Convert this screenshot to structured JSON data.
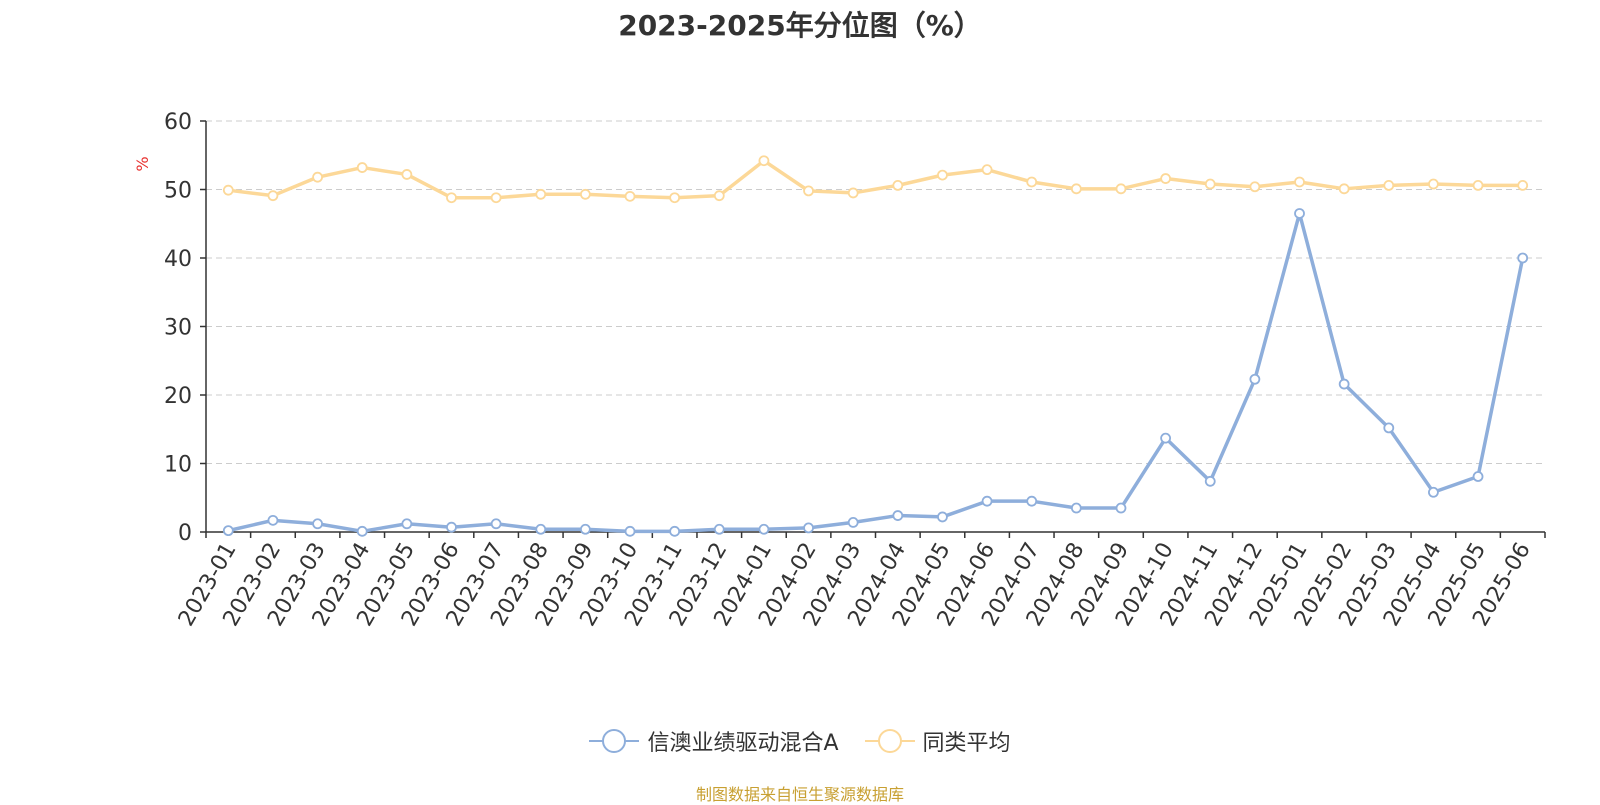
{
  "title": "2023-2025年分位图（%）",
  "source": "制图数据来自恒生聚源数据库",
  "chart_data": {
    "type": "line",
    "title": "2023-2025年分位图（%）",
    "ylabel": "%",
    "ylim": [
      0,
      60
    ],
    "yticks": [
      0,
      10,
      20,
      30,
      40,
      50,
      60
    ],
    "grid": true,
    "legend_position": "bottom",
    "categories": [
      "2023-01",
      "2023-02",
      "2023-03",
      "2023-04",
      "2023-05",
      "2023-06",
      "2023-07",
      "2023-08",
      "2023-09",
      "2023-10",
      "2023-11",
      "2023-12",
      "2024-01",
      "2024-02",
      "2024-03",
      "2024-04",
      "2024-05",
      "2024-06",
      "2024-07",
      "2024-08",
      "2024-09",
      "2024-10",
      "2024-11",
      "2024-12",
      "2025-01",
      "2025-02",
      "2025-03",
      "2025-04",
      "2025-05",
      "2025-06"
    ],
    "series": [
      {
        "name": "信澳业绩驱动混合A",
        "color": "#8eaedb",
        "values": [
          0.2,
          1.7,
          1.2,
          0.1,
          1.2,
          0.7,
          1.2,
          0.4,
          0.4,
          0.1,
          0.1,
          0.4,
          0.4,
          0.6,
          1.4,
          2.4,
          2.2,
          4.5,
          4.5,
          3.5,
          3.5,
          13.7,
          7.4,
          22.3,
          46.5,
          21.6,
          15.2,
          5.8,
          8.1,
          40.0
        ]
      },
      {
        "name": "同类平均",
        "color": "#fcd898",
        "values": [
          49.9,
          49.1,
          51.8,
          53.2,
          52.2,
          48.8,
          48.8,
          49.3,
          49.3,
          49.0,
          48.8,
          49.1,
          54.2,
          49.8,
          49.5,
          50.6,
          52.1,
          52.9,
          51.1,
          50.1,
          50.1,
          51.6,
          50.8,
          50.4,
          51.1,
          50.1,
          50.6,
          50.8,
          50.6,
          50.6
        ]
      }
    ]
  }
}
